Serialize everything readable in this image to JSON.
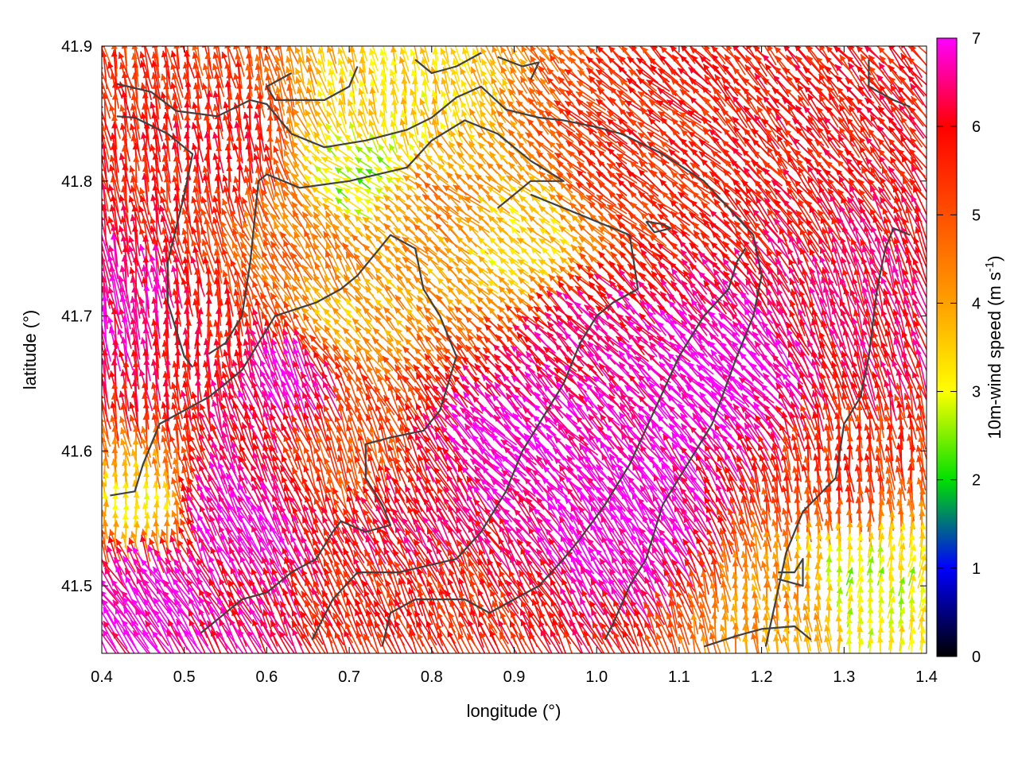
{
  "chart_data": {
    "type": "vector-field",
    "xlabel": "longitude (°)",
    "ylabel": "latitude (°)",
    "xlim": [
      0.4,
      1.4
    ],
    "ylim": [
      41.45,
      41.9
    ],
    "xticks": [
      "0.4",
      "0.5",
      "0.6",
      "0.7",
      "0.8",
      "0.9",
      "1.0",
      "1.1",
      "1.2",
      "1.3",
      "1.4"
    ],
    "yticks": [
      "41.5",
      "41.6",
      "41.7",
      "41.8",
      "41.9"
    ],
    "colorbar": {
      "label_parts": [
        "10m-wind speed (m s",
        "-1",
        ")"
      ],
      "range": [
        0,
        7
      ],
      "ticks": [
        "0",
        "1",
        "2",
        "3",
        "4",
        "5",
        "6",
        "7"
      ],
      "palette": [
        "#000000",
        "#0000ff",
        "#00e000",
        "#ffff00",
        "#ffa000",
        "#ff5000",
        "#ff0000",
        "#ff00ff"
      ]
    },
    "wind_regions": [
      {
        "lon": 0.55,
        "lat": 41.82,
        "speed": 5.8,
        "dir_deg": 95
      },
      {
        "lon": 0.42,
        "lat": 41.7,
        "speed": 6.6,
        "dir_deg": 100
      },
      {
        "lon": 0.52,
        "lat": 41.68,
        "speed": 5.8,
        "dir_deg": 90
      },
      {
        "lon": 0.65,
        "lat": 41.75,
        "speed": 4.6,
        "dir_deg": 120
      },
      {
        "lon": 0.75,
        "lat": 41.85,
        "speed": 3.4,
        "dir_deg": 100
      },
      {
        "lon": 0.7,
        "lat": 41.7,
        "speed": 3.8,
        "dir_deg": 130
      },
      {
        "lon": 0.8,
        "lat": 41.78,
        "speed": 4.4,
        "dir_deg": 140
      },
      {
        "lon": 0.9,
        "lat": 41.75,
        "speed": 3.4,
        "dir_deg": 140
      },
      {
        "lon": 1.05,
        "lat": 41.82,
        "speed": 5.6,
        "dir_deg": 140
      },
      {
        "lon": 1.25,
        "lat": 41.85,
        "speed": 5.8,
        "dir_deg": 130
      },
      {
        "lon": 1.0,
        "lat": 41.68,
        "speed": 6.5,
        "dir_deg": 135
      },
      {
        "lon": 1.15,
        "lat": 41.65,
        "speed": 7.0,
        "dir_deg": 135
      },
      {
        "lon": 1.33,
        "lat": 41.7,
        "speed": 6.2,
        "dir_deg": 110
      },
      {
        "lon": 0.9,
        "lat": 41.6,
        "speed": 7.0,
        "dir_deg": 135
      },
      {
        "lon": 1.05,
        "lat": 41.55,
        "speed": 7.0,
        "dir_deg": 125
      },
      {
        "lon": 0.8,
        "lat": 41.55,
        "speed": 6.2,
        "dir_deg": 120
      },
      {
        "lon": 0.55,
        "lat": 41.55,
        "speed": 7.0,
        "dir_deg": 120
      },
      {
        "lon": 0.45,
        "lat": 41.5,
        "speed": 7.0,
        "dir_deg": 125
      },
      {
        "lon": 0.7,
        "lat": 41.6,
        "speed": 5.0,
        "dir_deg": 110
      },
      {
        "lon": 0.62,
        "lat": 41.65,
        "speed": 6.8,
        "dir_deg": 115
      },
      {
        "lon": 0.8,
        "lat": 41.48,
        "speed": 5.6,
        "dir_deg": 115
      },
      {
        "lon": 1.22,
        "lat": 41.48,
        "speed": 4.2,
        "dir_deg": 100
      },
      {
        "lon": 1.32,
        "lat": 41.5,
        "speed": 2.8,
        "dir_deg": 80
      },
      {
        "lon": 1.3,
        "lat": 41.58,
        "speed": 5.4,
        "dir_deg": 95
      },
      {
        "lon": 0.45,
        "lat": 41.55,
        "speed": 3.2,
        "dir_deg": 90
      },
      {
        "lon": 0.72,
        "lat": 41.8,
        "speed": 2.6,
        "dir_deg": 150
      }
    ],
    "contours": [
      [
        [
          0.418,
          41.872
        ],
        [
          0.46,
          41.866
        ],
        [
          0.49,
          41.852
        ],
        [
          0.54,
          41.848
        ],
        [
          0.58,
          41.86
        ],
        [
          0.6,
          41.857
        ],
        [
          0.63,
          41.835
        ],
        [
          0.67,
          41.825
        ],
        [
          0.72,
          41.83
        ],
        [
          0.77,
          41.838
        ],
        [
          0.8,
          41.847
        ],
        [
          0.83,
          41.862
        ],
        [
          0.86,
          41.87
        ],
        [
          0.89,
          41.853
        ],
        [
          0.93,
          41.847
        ],
        [
          0.96,
          41.845
        ],
        [
          1.0,
          41.84
        ],
        [
          1.03,
          41.835
        ],
        [
          1.08,
          41.82
        ],
        [
          1.13,
          41.8
        ],
        [
          1.16,
          41.78
        ],
        [
          1.19,
          41.76
        ],
        [
          1.2,
          41.73
        ],
        [
          1.19,
          41.7
        ],
        [
          1.17,
          41.67
        ],
        [
          1.14,
          41.62
        ],
        [
          1.11,
          41.59
        ],
        [
          1.08,
          41.56
        ],
        [
          1.06,
          41.52
        ],
        [
          1.04,
          41.5
        ],
        [
          1.02,
          41.472
        ],
        [
          1.01,
          41.46
        ]
      ],
      [
        [
          0.418,
          41.848
        ],
        [
          0.44,
          41.847
        ],
        [
          0.48,
          41.835
        ],
        [
          0.51,
          41.82
        ],
        [
          0.5,
          41.79
        ],
        [
          0.49,
          41.765
        ],
        [
          0.48,
          41.74
        ],
        [
          0.48,
          41.71
        ],
        [
          0.5,
          41.67
        ],
        [
          0.51,
          41.662
        ]
      ],
      [
        [
          0.53,
          41.672
        ],
        [
          0.55,
          41.68
        ],
        [
          0.57,
          41.7
        ],
        [
          0.58,
          41.74
        ],
        [
          0.59,
          41.8
        ],
        [
          0.6,
          41.805
        ],
        [
          0.64,
          41.795
        ],
        [
          0.7,
          41.8
        ],
        [
          0.77,
          41.81
        ],
        [
          0.8,
          41.83
        ],
        [
          0.84,
          41.845
        ],
        [
          0.88,
          41.835
        ],
        [
          0.92,
          41.815
        ],
        [
          0.96,
          41.8
        ],
        [
          0.92,
          41.8
        ],
        [
          0.88,
          41.78
        ]
      ],
      [
        [
          0.41,
          41.567
        ],
        [
          0.44,
          41.57
        ],
        [
          0.45,
          41.59
        ],
        [
          0.47,
          41.62
        ],
        [
          0.5,
          41.63
        ],
        [
          0.53,
          41.64
        ],
        [
          0.57,
          41.66
        ],
        [
          0.61,
          41.7
        ],
        [
          0.66,
          41.71
        ],
        [
          0.69,
          41.72
        ],
        [
          0.71,
          41.73
        ],
        [
          0.75,
          41.76
        ],
        [
          0.78,
          41.75
        ],
        [
          0.79,
          41.72
        ],
        [
          0.81,
          41.7
        ],
        [
          0.83,
          41.67
        ],
        [
          0.81,
          41.63
        ],
        [
          0.79,
          41.615
        ],
        [
          0.75,
          41.61
        ],
        [
          0.72,
          41.605
        ],
        [
          0.72,
          41.58
        ],
        [
          0.74,
          41.56
        ],
        [
          0.75,
          41.545
        ],
        [
          0.72,
          41.54
        ],
        [
          0.69,
          41.548
        ],
        [
          0.68,
          41.54
        ],
        [
          0.66,
          41.52
        ],
        [
          0.63,
          41.51
        ],
        [
          0.6,
          41.495
        ],
        [
          0.57,
          41.49
        ],
        [
          0.54,
          41.475
        ],
        [
          0.52,
          41.465
        ]
      ],
      [
        [
          0.655,
          41.46
        ],
        [
          0.68,
          41.49
        ],
        [
          0.71,
          41.51
        ],
        [
          0.76,
          41.51
        ],
        [
          0.83,
          41.52
        ],
        [
          0.86,
          41.54
        ],
        [
          0.89,
          41.57
        ],
        [
          0.91,
          41.6
        ],
        [
          0.93,
          41.62
        ],
        [
          0.96,
          41.65
        ],
        [
          0.98,
          41.68
        ],
        [
          1.0,
          41.7
        ],
        [
          1.02,
          41.71
        ],
        [
          1.05,
          41.72
        ],
        [
          1.04,
          41.76
        ],
        [
          1.0,
          41.77
        ],
        [
          0.96,
          41.78
        ],
        [
          0.92,
          41.79
        ]
      ],
      [
        [
          0.74,
          41.455
        ],
        [
          0.75,
          41.48
        ],
        [
          0.78,
          41.49
        ],
        [
          0.84,
          41.49
        ],
        [
          0.87,
          41.48
        ],
        [
          0.9,
          41.49
        ],
        [
          0.93,
          41.5
        ],
        [
          0.96,
          41.52
        ],
        [
          0.98,
          41.535
        ],
        [
          1.01,
          41.56
        ],
        [
          1.04,
          41.59
        ],
        [
          1.07,
          41.63
        ],
        [
          1.1,
          41.67
        ],
        [
          1.13,
          41.7
        ],
        [
          1.16,
          41.72
        ],
        [
          1.17,
          41.74
        ],
        [
          1.18,
          41.75
        ]
      ],
      [
        [
          1.13,
          41.455
        ],
        [
          1.17,
          41.463
        ],
        [
          1.2,
          41.468
        ],
        [
          1.24,
          41.47
        ],
        [
          1.26,
          41.46
        ]
      ],
      [
        [
          1.22,
          41.51
        ],
        [
          1.24,
          41.51
        ],
        [
          1.25,
          41.52
        ],
        [
          1.25,
          41.5
        ],
        [
          1.22,
          41.505
        ]
      ],
      [
        [
          1.205,
          41.455
        ],
        [
          1.23,
          41.525
        ],
        [
          1.25,
          41.555
        ],
        [
          1.29,
          41.58
        ],
        [
          1.3,
          41.62
        ],
        [
          1.32,
          41.64
        ],
        [
          1.33,
          41.67
        ],
        [
          1.34,
          41.72
        ],
        [
          1.35,
          41.75
        ],
        [
          1.36,
          41.765
        ],
        [
          1.38,
          41.76
        ]
      ],
      [
        [
          1.33,
          41.89
        ],
        [
          1.33,
          41.87
        ],
        [
          1.36,
          41.86
        ],
        [
          1.38,
          41.855
        ]
      ],
      [
        [
          0.63,
          41.88
        ],
        [
          0.6,
          41.87
        ],
        [
          0.61,
          41.86
        ],
        [
          0.67,
          41.86
        ],
        [
          0.7,
          41.87
        ],
        [
          0.71,
          41.885
        ]
      ],
      [
        [
          0.78,
          41.89
        ],
        [
          0.8,
          41.88
        ],
        [
          0.83,
          41.885
        ],
        [
          0.86,
          41.895
        ]
      ],
      [
        [
          0.88,
          41.892
        ],
        [
          0.91,
          41.885
        ],
        [
          0.93,
          41.888
        ],
        [
          0.92,
          41.875
        ]
      ],
      [
        [
          1.06,
          41.77
        ],
        [
          1.08,
          41.768
        ],
        [
          1.09,
          41.765
        ],
        [
          1.07,
          41.762
        ],
        [
          1.06,
          41.77
        ]
      ]
    ]
  }
}
